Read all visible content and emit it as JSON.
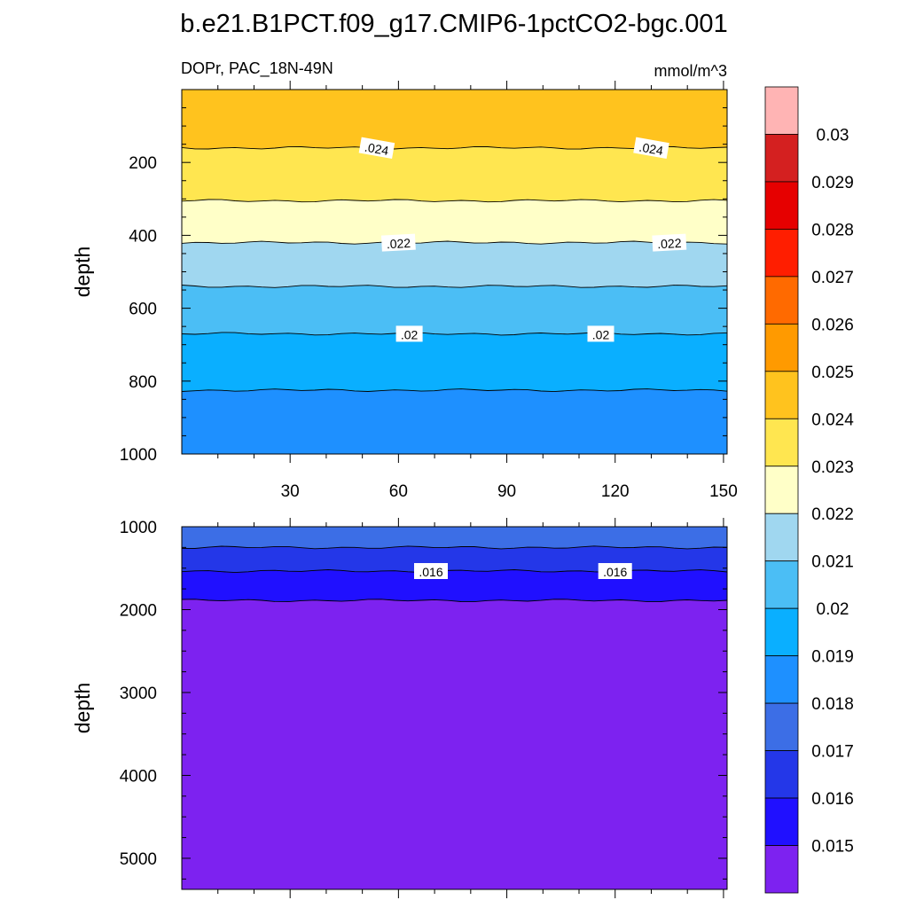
{
  "figure": {
    "title": "b.e21.B1PCT.f09_g17.CMIP6-1pctCO2-bgc.001",
    "left_string": "DOPr, PAC_18N-49N",
    "right_string": "mmol/m^3"
  },
  "chart_data": [
    {
      "type": "contour",
      "panel": "upper",
      "ylabel": "depth",
      "xlabel": "",
      "x_ticks": [
        30,
        60,
        90,
        120,
        150
      ],
      "y_ticks": [
        200,
        400,
        600,
        800,
        1000
      ],
      "xlim": [
        0,
        151
      ],
      "ylim": [
        0,
        1000
      ],
      "y_reversed": true,
      "boundaries": [
        {
          "value": 0.024,
          "depth": 160,
          "label": ".024",
          "label_x": [
            54,
            130
          ]
        },
        {
          "value": 0.023,
          "depth": 305,
          "label": "",
          "label_x": []
        },
        {
          "value": 0.022,
          "depth": 420,
          "label": ".022",
          "label_x": [
            60,
            135
          ]
        },
        {
          "value": 0.021,
          "depth": 540,
          "label": "",
          "label_x": []
        },
        {
          "value": 0.02,
          "depth": 670,
          "label": ".02",
          "label_x": [
            63,
            116
          ]
        },
        {
          "value": 0.019,
          "depth": 825,
          "label": "",
          "label_x": []
        }
      ],
      "bands": [
        {
          "from": 0,
          "to": 160,
          "level_bin": "0.024-0.025"
        },
        {
          "from": 160,
          "to": 305,
          "level_bin": "0.023-0.024"
        },
        {
          "from": 305,
          "to": 420,
          "level_bin": "0.022-0.023"
        },
        {
          "from": 420,
          "to": 540,
          "level_bin": "0.021-0.022"
        },
        {
          "from": 540,
          "to": 670,
          "level_bin": "0.020-0.021"
        },
        {
          "from": 670,
          "to": 825,
          "level_bin": "0.019-0.020"
        },
        {
          "from": 825,
          "to": 1000,
          "level_bin": "0.018-0.019"
        }
      ]
    },
    {
      "type": "contour",
      "panel": "lower",
      "ylabel": "depth",
      "xlabel": "",
      "y_ticks": [
        1000,
        2000,
        3000,
        4000,
        5000
      ],
      "xlim": [
        0,
        151
      ],
      "ylim": [
        1000,
        5375
      ],
      "y_reversed": true,
      "boundaries": [
        {
          "value": 0.017,
          "depth": 1250,
          "label": "",
          "label_x": []
        },
        {
          "value": 0.016,
          "depth": 1535,
          "label": ".016",
          "label_x": [
            69,
            120
          ]
        },
        {
          "value": 0.015,
          "depth": 1890,
          "label": "",
          "label_x": []
        }
      ],
      "bands": [
        {
          "from": 1000,
          "to": 1250,
          "level_bin": "0.017-0.018"
        },
        {
          "from": 1250,
          "to": 1535,
          "level_bin": "0.016-0.017"
        },
        {
          "from": 1535,
          "to": 1890,
          "level_bin": "0.015-0.016"
        },
        {
          "from": 1890,
          "to": 5375,
          "level_bin": "<0.015"
        }
      ]
    }
  ],
  "colorbar": {
    "labels": [
      "0.03",
      "0.029",
      "0.028",
      "0.027",
      "0.026",
      "0.025",
      "0.024",
      "0.023",
      "0.022",
      "0.021",
      "0.02",
      "0.019",
      "0.018",
      "0.017",
      "0.016",
      "0.015"
    ],
    "colors": [
      "#ffb4b4",
      "#d42020",
      "#e60000",
      "#ff1e00",
      "#ff6a00",
      "#ff9a00",
      "#ffc31e",
      "#ffe650",
      "#ffffc8",
      "#a0d7f0",
      "#4bbef5",
      "#0aafff",
      "#1e90ff",
      "#3c6ee6",
      "#2437e8",
      "#2010ff",
      "#7d22f0"
    ],
    "level_bins": [
      ">0.03",
      "0.029-0.03",
      "0.028-0.029",
      "0.027-0.028",
      "0.026-0.027",
      "0.025-0.026",
      "0.024-0.025",
      "0.023-0.024",
      "0.022-0.023",
      "0.021-0.022",
      "0.020-0.021",
      "0.019-0.020",
      "0.018-0.019",
      "0.017-0.018",
      "0.016-0.017",
      "0.015-0.016",
      "<0.015"
    ]
  }
}
